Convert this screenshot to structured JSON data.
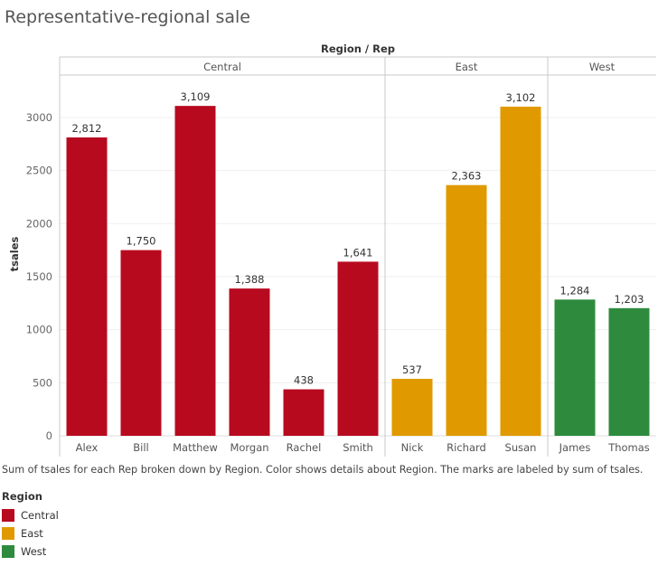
{
  "chart_data": {
    "type": "bar",
    "title": "Representative-regional sale",
    "column_header": "Region / Rep",
    "ylabel": "tsales",
    "ylim": [
      0,
      3400
    ],
    "yticks": [
      0,
      500,
      1000,
      1500,
      2000,
      2500,
      3000
    ],
    "grid": true,
    "regions": [
      {
        "name": "Central",
        "color": "#b80a1f",
        "reps": [
          {
            "name": "Alex",
            "value": 2812,
            "label": "2,812"
          },
          {
            "name": "Bill",
            "value": 1750,
            "label": "1,750"
          },
          {
            "name": "Matthew",
            "value": 3109,
            "label": "3,109"
          },
          {
            "name": "Morgan",
            "value": 1388,
            "label": "1,388"
          },
          {
            "name": "Rachel",
            "value": 438,
            "label": "438"
          },
          {
            "name": "Smith",
            "value": 1641,
            "label": "1,641"
          }
        ]
      },
      {
        "name": "East",
        "color": "#e09a00",
        "reps": [
          {
            "name": "Nick",
            "value": 537,
            "label": "537"
          },
          {
            "name": "Richard",
            "value": 2363,
            "label": "2,363"
          },
          {
            "name": "Susan",
            "value": 3102,
            "label": "3,102"
          }
        ]
      },
      {
        "name": "West",
        "color": "#2e8b3d",
        "reps": [
          {
            "name": "James",
            "value": 1284,
            "label": "1,284"
          },
          {
            "name": "Thomas",
            "value": 1203,
            "label": "1,203"
          }
        ]
      }
    ],
    "caption": "Sum of tsales for each Rep broken down by Region.  Color shows details about Region.  The marks are labeled by sum of tsales.",
    "legend": {
      "title": "Region",
      "placement": "bottom-left",
      "items": [
        {
          "label": "Central",
          "color": "#b80a1f"
        },
        {
          "label": "East",
          "color": "#e09a00"
        },
        {
          "label": "West",
          "color": "#2e8b3d"
        }
      ]
    }
  }
}
